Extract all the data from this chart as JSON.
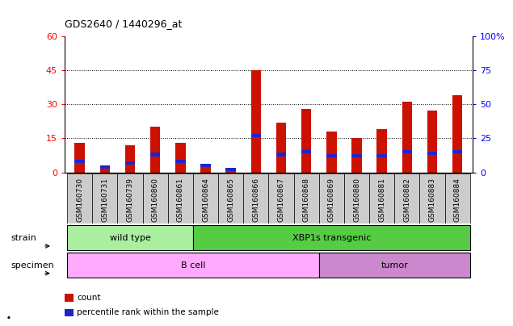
{
  "title": "GDS2640 / 1440296_at",
  "samples": [
    "GSM160730",
    "GSM160731",
    "GSM160739",
    "GSM160860",
    "GSM160861",
    "GSM160864",
    "GSM160865",
    "GSM160866",
    "GSM160867",
    "GSM160868",
    "GSM160869",
    "GSM160880",
    "GSM160881",
    "GSM160882",
    "GSM160883",
    "GSM160884"
  ],
  "count_values": [
    13,
    2,
    12,
    20,
    13,
    3,
    1,
    45,
    22,
    28,
    18,
    15,
    19,
    31,
    27,
    34
  ],
  "percentile_values": [
    8,
    4,
    7,
    13,
    8,
    5,
    2,
    27,
    13,
    15,
    12,
    12,
    12,
    15,
    14,
    15
  ],
  "strain_groups": [
    {
      "label": "wild type",
      "start": 0,
      "end": 4,
      "color": "#AAEEA0"
    },
    {
      "label": "XBP1s transgenic",
      "start": 5,
      "end": 15,
      "color": "#55CC44"
    }
  ],
  "specimen_groups": [
    {
      "label": "B cell",
      "start": 0,
      "end": 9,
      "color": "#FFAAFF"
    },
    {
      "label": "tumor",
      "start": 10,
      "end": 15,
      "color": "#CC88CC"
    }
  ],
  "ylim_left": [
    0,
    60
  ],
  "ylim_right": [
    0,
    100
  ],
  "yticks_left": [
    0,
    15,
    30,
    45,
    60
  ],
  "yticks_right": [
    0,
    25,
    50,
    75,
    100
  ],
  "yticklabels_right": [
    "0",
    "25",
    "50",
    "75",
    "100%"
  ],
  "bar_color": "#CC1100",
  "percentile_color": "#2222CC",
  "bar_width": 0.4,
  "label_strain": "strain",
  "label_specimen": "specimen",
  "legend_items": [
    {
      "label": "count",
      "color": "#CC1100"
    },
    {
      "label": "percentile rank within the sample",
      "color": "#2222CC"
    }
  ]
}
